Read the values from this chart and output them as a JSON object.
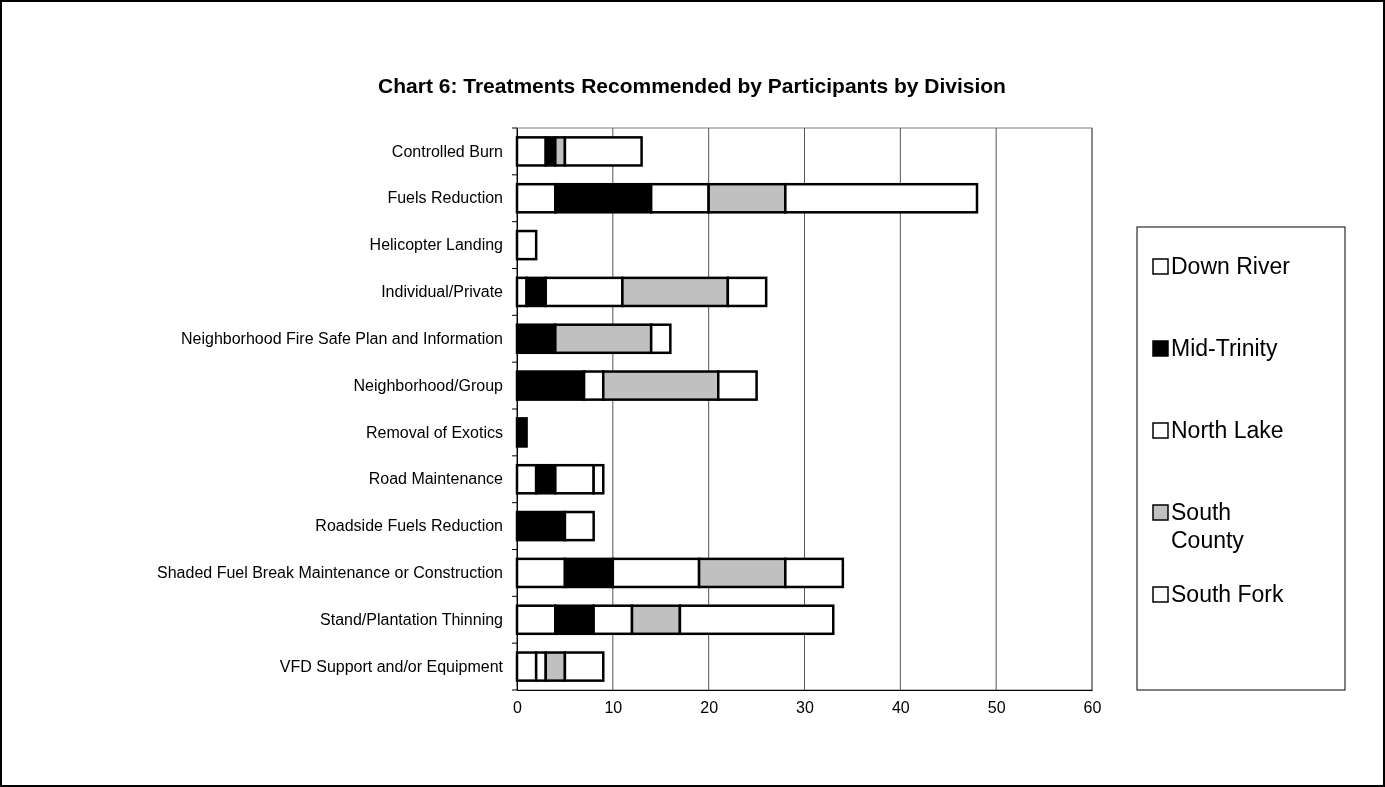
{
  "chart_data": {
    "type": "bar",
    "orientation": "horizontal",
    "stacked": true,
    "title": "Chart 6: Treatments Recommended by Participants by Division",
    "categories": [
      "Controlled Burn",
      "Fuels Reduction",
      "Helicopter Landing",
      "Individual/Private",
      "Neighborhood Fire Safe Plan and Information",
      "Neighborhood/Group",
      "Removal of Exotics",
      "Road Maintenance",
      "Roadside Fuels Reduction",
      "Shaded Fuel Break Maintenance or Construction",
      "Stand/Plantation Thinning",
      "VFD Support and/or Equipment"
    ],
    "series": [
      {
        "name": "Down River",
        "color": "#ffffff",
        "values": [
          3,
          4,
          2,
          1,
          0,
          0,
          0,
          2,
          0,
          5,
          4,
          2
        ]
      },
      {
        "name": "Mid-Trinity",
        "color": "#000000",
        "values": [
          1,
          10,
          0,
          2,
          4,
          7,
          1,
          2,
          5,
          5,
          4,
          0
        ]
      },
      {
        "name": "North Lake",
        "color": "#ffffff",
        "values": [
          0,
          6,
          0,
          8,
          0,
          2,
          0,
          4,
          0,
          9,
          4,
          1
        ]
      },
      {
        "name": "South County",
        "color": "#c0c0c0",
        "values": [
          1,
          8,
          0,
          11,
          10,
          12,
          0,
          0,
          0,
          9,
          5,
          2
        ]
      },
      {
        "name": "South Fork",
        "color": "#ffffff",
        "values": [
          8,
          20,
          0,
          4,
          2,
          4,
          0,
          1,
          3,
          6,
          16,
          4
        ]
      }
    ],
    "xlim": [
      0,
      60
    ],
    "xticks": [
      0,
      10,
      20,
      30,
      40,
      50,
      60
    ],
    "grid": "x",
    "legend": "right"
  }
}
